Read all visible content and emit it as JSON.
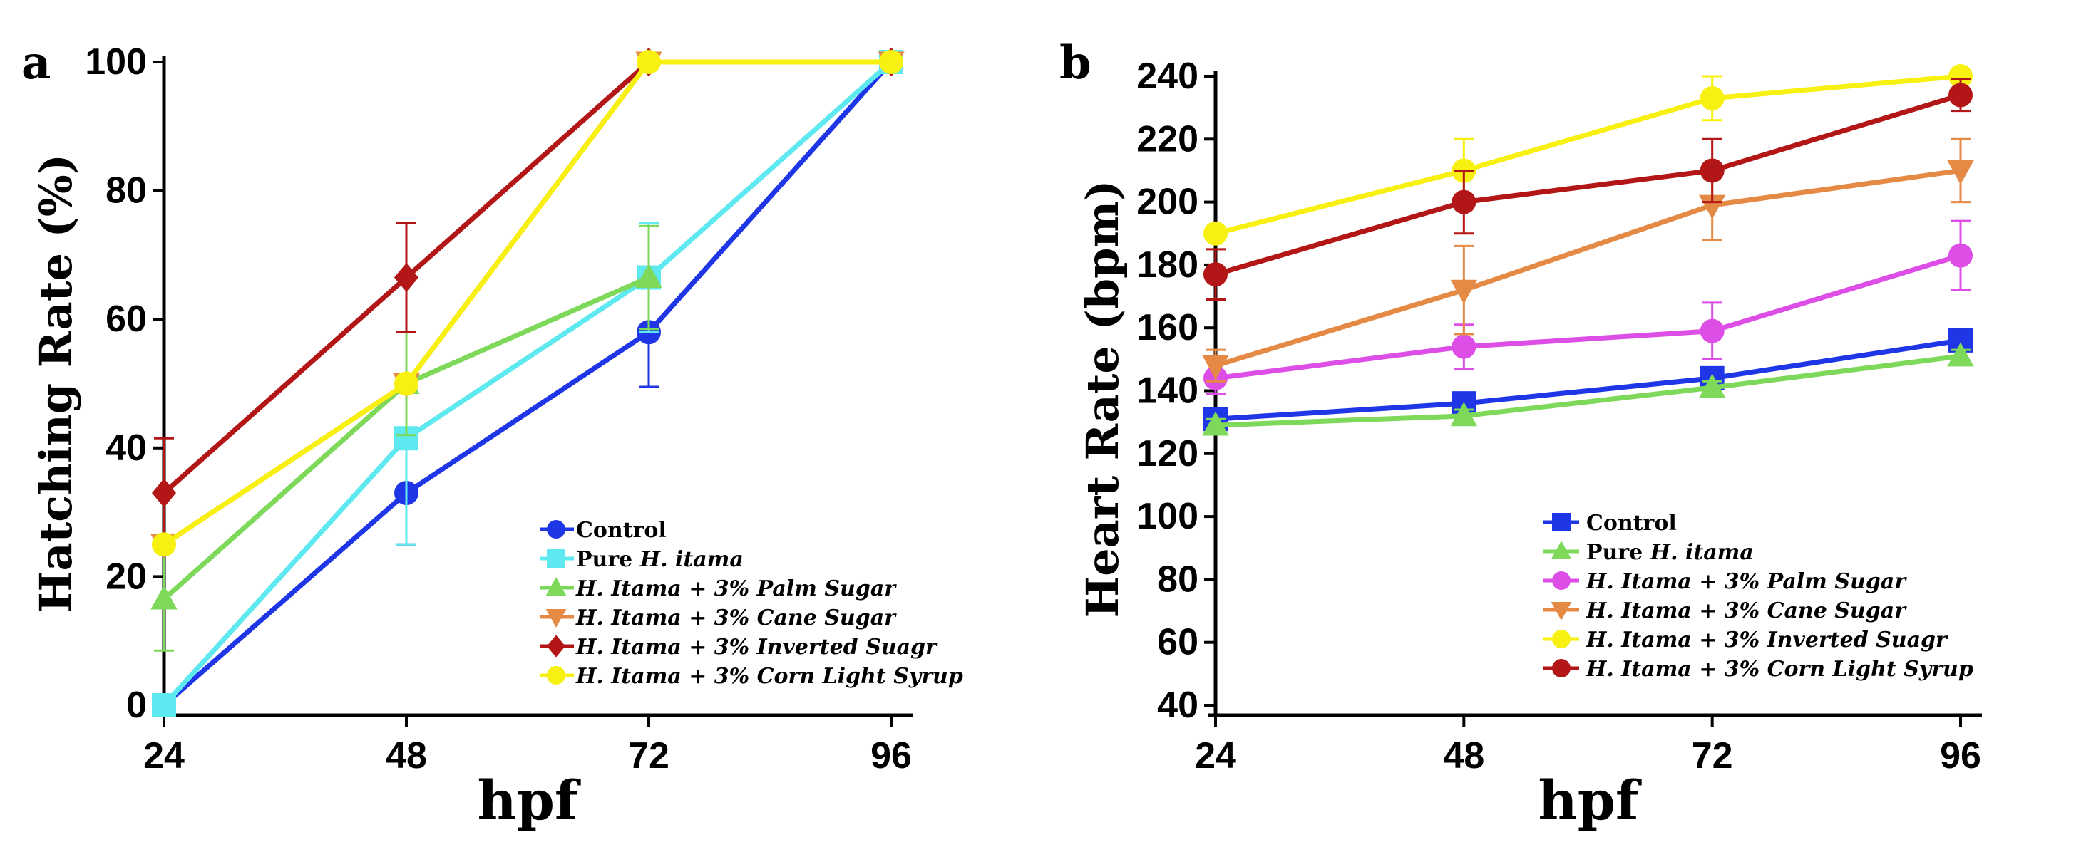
{
  "chart_data": [
    {
      "panel": "a",
      "type": "line",
      "xlabel": "hpf",
      "ylabel": "Hatching Rate (%)",
      "x": [
        24,
        48,
        72,
        96
      ],
      "xticks": [
        "24",
        "48",
        "72",
        "96"
      ],
      "ylim": [
        0,
        100
      ],
      "yticks": [
        "0",
        "20",
        "40",
        "60",
        "80",
        "100"
      ],
      "series": [
        {
          "name": "Control",
          "color": "#1f36e6",
          "marker": "circle",
          "values": [
            0,
            33,
            58,
            100
          ],
          "errors": [
            0,
            8,
            8.5,
            0
          ]
        },
        {
          "name": "Pure H. itama",
          "color": "#5ee8ef",
          "marker": "square",
          "values": [
            0,
            41.5,
            66.5,
            100
          ],
          "errors": [
            0,
            16.5,
            8.5,
            0
          ]
        },
        {
          "name": "H. Itama + 3% Palm Sugar",
          "color": "#7ed95a",
          "marker": "triangle-up",
          "values": [
            16.5,
            50,
            66.5,
            null
          ],
          "errors": [
            8,
            8,
            8,
            0
          ]
        },
        {
          "name": "H. Itama + 3% Cane Sugar",
          "color": "#e58a45",
          "marker": "triangle-down",
          "values": [
            25,
            50,
            100,
            100
          ],
          "errors": [
            0,
            0,
            0,
            0
          ]
        },
        {
          "name": "H. Itama + 3% Inverted Suagr",
          "color": "#b31616",
          "marker": "diamond",
          "values": [
            33,
            66.5,
            100,
            100
          ],
          "errors": [
            8.5,
            8.5,
            0,
            0
          ]
        },
        {
          "name": "H. Itama + 3% Corn Light Syrup",
          "color": "#f7f010",
          "marker": "circle",
          "values": [
            25,
            50,
            100,
            100
          ],
          "errors": [
            0,
            0,
            0,
            0
          ]
        }
      ],
      "legend": [
        {
          "prefix": "Control",
          "italic": "",
          "suffix": ""
        },
        {
          "prefix": "Pure ",
          "italic": "H. itama",
          "suffix": ""
        },
        {
          "prefix": "",
          "italic": "H. Itama + 3% Palm Sugar",
          "suffix": ""
        },
        {
          "prefix": "",
          "italic": "H. Itama + 3% Cane Sugar",
          "suffix": ""
        },
        {
          "prefix": "",
          "italic": "H. Itama + 3% Inverted Suagr",
          "suffix": ""
        },
        {
          "prefix": "",
          "italic": "H. Itama + 3% Corn  Light Syrup",
          "suffix": ""
        }
      ]
    },
    {
      "panel": "b",
      "type": "line",
      "xlabel": "hpf",
      "ylabel": "Heart Rate (bpm)",
      "x": [
        24,
        48,
        72,
        96
      ],
      "xticks": [
        "24",
        "48",
        "72",
        "96"
      ],
      "ylim": [
        40,
        240
      ],
      "yticks": [
        "40",
        "60",
        "80",
        "100",
        "120",
        "140",
        "160",
        "180",
        "200",
        "220",
        "240"
      ],
      "series": [
        {
          "name": "Control",
          "color": "#1f36e6",
          "marker": "square",
          "values": [
            131,
            136,
            144,
            156
          ],
          "errors": [
            2,
            2,
            2,
            2
          ]
        },
        {
          "name": "Pure H. itama",
          "color": "#7ed95a",
          "marker": "triangle-up",
          "values": [
            129,
            132,
            141,
            151
          ],
          "errors": [
            2,
            2,
            2,
            2
          ]
        },
        {
          "name": "H. Itama + 3% Palm Sugar",
          "color": "#dd4ee6",
          "marker": "circle",
          "values": [
            144,
            154,
            159,
            183
          ],
          "errors": [
            5,
            7,
            9,
            11
          ]
        },
        {
          "name": "H. Itama + 3% Cane Sugar",
          "color": "#e58a45",
          "marker": "triangle-down",
          "values": [
            148,
            172,
            199,
            210
          ],
          "errors": [
            5,
            14,
            11,
            10
          ]
        },
        {
          "name": "H. Itama + 3% Inverted Suagr",
          "color": "#f7f010",
          "marker": "circle",
          "values": [
            190,
            210,
            233,
            240
          ],
          "errors": [
            0,
            10,
            7,
            0
          ]
        },
        {
          "name": "H. Itama + 3% Corn Light Syrup",
          "color": "#b31616",
          "marker": "circle",
          "values": [
            177,
            200,
            210,
            234
          ],
          "errors": [
            8,
            10,
            10,
            5
          ]
        }
      ],
      "legend": [
        {
          "prefix": "Control",
          "italic": "",
          "suffix": ""
        },
        {
          "prefix": "Pure ",
          "italic": "H. itama",
          "suffix": ""
        },
        {
          "prefix": "",
          "italic": "H. Itama + 3% Palm Sugar",
          "suffix": ""
        },
        {
          "prefix": "",
          "italic": "H. Itama + 3% Cane Sugar",
          "suffix": ""
        },
        {
          "prefix": "",
          "italic": "H. Itama + 3% Inverted Suagr",
          "suffix": ""
        },
        {
          "prefix": "",
          "italic": "H. Itama + 3% Corn  Light Syrup",
          "suffix": ""
        }
      ]
    }
  ]
}
